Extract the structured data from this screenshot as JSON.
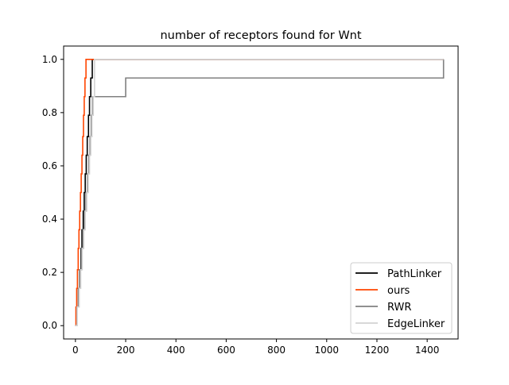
{
  "chart_data": {
    "type": "line",
    "title": "number of receptors found for Wnt",
    "xlabel": "",
    "ylabel": "",
    "xlim": [
      -47,
      1523
    ],
    "ylim": [
      -0.05,
      1.05
    ],
    "xticks": [
      0,
      200,
      400,
      600,
      800,
      1000,
      1200,
      1400
    ],
    "yticks": [
      0.0,
      0.2,
      0.4,
      0.6,
      0.8,
      1.0
    ],
    "xtick_labels": [
      "0",
      "200",
      "400",
      "600",
      "800",
      "1000",
      "1200",
      "1400"
    ],
    "ytick_labels": [
      "0.0",
      "0.2",
      "0.4",
      "0.6",
      "0.8",
      "1.0"
    ],
    "grid": false,
    "legend_position": "lower right",
    "series": [
      {
        "name": "PathLinker",
        "color": "#000000",
        "step": true,
        "x": [
          0,
          5,
          12,
          17,
          22,
          26,
          31,
          35,
          39,
          43,
          47,
          52,
          56,
          61,
          67,
          1465
        ],
        "y": [
          0.0,
          0.07,
          0.14,
          0.21,
          0.29,
          0.36,
          0.43,
          0.5,
          0.57,
          0.64,
          0.71,
          0.79,
          0.86,
          0.93,
          1.0,
          1.0
        ]
      },
      {
        "name": "ours",
        "color": "#ff4500",
        "step": true,
        "x": [
          0,
          2,
          5,
          8,
          11,
          14,
          17,
          20,
          23,
          26,
          29,
          32,
          35,
          38,
          42,
          1465
        ],
        "y": [
          0.0,
          0.07,
          0.14,
          0.21,
          0.29,
          0.36,
          0.43,
          0.5,
          0.57,
          0.64,
          0.71,
          0.79,
          0.86,
          0.93,
          1.0,
          1.0
        ]
      },
      {
        "name": "RWR",
        "color": "#808080",
        "step": true,
        "x": [
          0,
          6,
          12,
          18,
          24,
          30,
          36,
          42,
          48,
          53,
          58,
          63,
          68,
          200,
          1465
        ],
        "y": [
          0.0,
          0.07,
          0.14,
          0.21,
          0.29,
          0.36,
          0.43,
          0.5,
          0.57,
          0.64,
          0.71,
          0.79,
          0.86,
          0.93,
          1.0
        ]
      },
      {
        "name": "EdgeLinker",
        "color": "#d3d3d3",
        "step": true,
        "x": [
          0,
          7,
          15,
          21,
          27,
          33,
          39,
          45,
          51,
          56,
          61,
          66,
          71,
          76,
          1465
        ],
        "y": [
          0.0,
          0.07,
          0.14,
          0.21,
          0.29,
          0.36,
          0.43,
          0.5,
          0.57,
          0.64,
          0.71,
          0.79,
          0.86,
          1.0,
          1.0
        ]
      }
    ]
  }
}
